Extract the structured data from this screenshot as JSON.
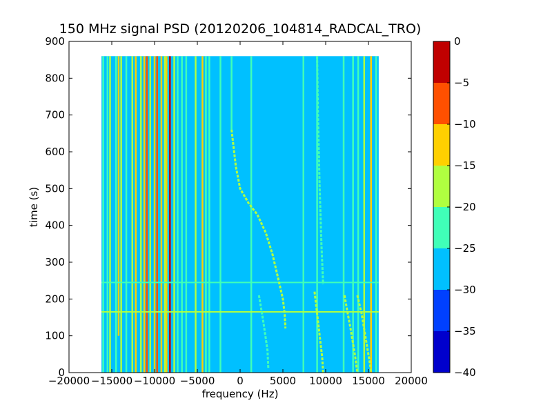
{
  "chart_data": {
    "type": "heatmap",
    "title": "150 MHz signal PSD (20120206_104814_RADCAL_TRO)",
    "xlabel": "frequency (Hz)",
    "ylabel": "time (s)",
    "xlim": [
      -20000,
      20000
    ],
    "ylim": [
      0,
      900
    ],
    "x_ticks": [
      -20000,
      -15000,
      -10000,
      -5000,
      0,
      5000,
      10000,
      15000,
      20000
    ],
    "y_ticks": [
      0,
      100,
      200,
      300,
      400,
      500,
      600,
      700,
      800,
      900
    ],
    "data_extent": {
      "x": [
        -16200,
        16200
      ],
      "y": [
        0,
        860
      ]
    },
    "background_level": -27.5,
    "colorbar": {
      "min": -40,
      "max": 0,
      "ticks": [
        0,
        -5,
        -10,
        -15,
        -20,
        -25,
        -30,
        -35,
        -40
      ],
      "bands": [
        {
          "range": [
            -40,
            -35
          ],
          "color": "#0000cc"
        },
        {
          "range": [
            -35,
            -30
          ],
          "color": "#0040ff"
        },
        {
          "range": [
            -30,
            -25
          ],
          "color": "#00c0ff"
        },
        {
          "range": [
            -25,
            -20
          ],
          "color": "#40ffb8"
        },
        {
          "range": [
            -20,
            -15
          ],
          "color": "#b0ff40"
        },
        {
          "range": [
            -15,
            -10
          ],
          "color": "#ffd000"
        },
        {
          "range": [
            -10,
            -5
          ],
          "color": "#ff5000"
        },
        {
          "range": [
            -5,
            0
          ],
          "color": "#c00000"
        }
      ]
    },
    "vertical_lines": [
      {
        "x": -16000,
        "t": [
          0,
          860
        ],
        "level": -22
      },
      {
        "x": -15500,
        "t": [
          0,
          860
        ],
        "level": -22
      },
      {
        "x": -15200,
        "t": [
          0,
          860
        ],
        "level": -17
      },
      {
        "x": -14500,
        "t": [
          0,
          860
        ],
        "level": -22
      },
      {
        "x": -14200,
        "t": [
          100,
          860
        ],
        "level": -12
      },
      {
        "x": -13900,
        "t": [
          0,
          860
        ],
        "level": -17
      },
      {
        "x": -13300,
        "t": [
          0,
          860
        ],
        "level": -22
      },
      {
        "x": -12600,
        "t": [
          0,
          860
        ],
        "level": -17
      },
      {
        "x": -12200,
        "t": [
          0,
          860
        ],
        "level": -12
      },
      {
        "x": -11600,
        "t": [
          0,
          860
        ],
        "level": -17
      },
      {
        "x": -11200,
        "t": [
          0,
          860
        ],
        "level": -12
      },
      {
        "x": -10900,
        "t": [
          0,
          860
        ],
        "level": -7
      },
      {
        "x": -10500,
        "t": [
          0,
          860
        ],
        "level": -17
      },
      {
        "x": -10000,
        "t": [
          0,
          860
        ],
        "level": -12
      },
      {
        "x": -9700,
        "t": [
          0,
          860
        ],
        "level": -7
      },
      {
        "x": -9200,
        "t": [
          0,
          860
        ],
        "level": -12
      },
      {
        "x": -8800,
        "t": [
          0,
          860
        ],
        "level": -17
      },
      {
        "x": -8600,
        "t": [
          0,
          860
        ],
        "level": -12
      },
      {
        "x": -8200,
        "t": [
          0,
          860
        ],
        "level": -2
      },
      {
        "x": -7700,
        "t": [
          0,
          860
        ],
        "level": -17
      },
      {
        "x": -7300,
        "t": [
          0,
          860
        ],
        "level": -22
      },
      {
        "x": -6800,
        "t": [
          0,
          860
        ],
        "level": -22
      },
      {
        "x": -6300,
        "t": [
          0,
          860
        ],
        "level": -22
      },
      {
        "x": -5200,
        "t": [
          0,
          860
        ],
        "level": -17
      },
      {
        "x": -4400,
        "t": [
          0,
          860
        ],
        "level": -12
      },
      {
        "x": -4000,
        "t": [
          0,
          860
        ],
        "level": -22
      },
      {
        "x": -3600,
        "t": [
          0,
          860
        ],
        "level": -22
      },
      {
        "x": -2300,
        "t": [
          0,
          860
        ],
        "level": -22
      },
      {
        "x": -1000,
        "t": [
          660,
          860
        ],
        "level": -22
      },
      {
        "x": 1300,
        "t": [
          0,
          860
        ],
        "level": -22
      },
      {
        "x": 7400,
        "t": [
          0,
          860
        ],
        "level": -22
      },
      {
        "x": 9000,
        "t": [
          0,
          860
        ],
        "level": -22
      },
      {
        "x": 12100,
        "t": [
          0,
          860
        ],
        "level": -22
      },
      {
        "x": 13200,
        "t": [
          0,
          860
        ],
        "level": -22
      },
      {
        "x": 13800,
        "t": [
          0,
          860
        ],
        "level": -22
      },
      {
        "x": 14500,
        "t": [
          0,
          860
        ],
        "level": -17
      },
      {
        "x": 15300,
        "t": [
          0,
          860
        ],
        "level": -12
      },
      {
        "x": 15900,
        "t": [
          0,
          860
        ],
        "level": -22
      }
    ],
    "tracks": [
      {
        "points": [
          [
            -1000,
            660
          ],
          [
            -500,
            560
          ],
          [
            0,
            500
          ],
          [
            1000,
            460
          ],
          [
            2000,
            430
          ],
          [
            3000,
            380
          ],
          [
            3800,
            320
          ],
          [
            4400,
            260
          ],
          [
            5000,
            200
          ],
          [
            5200,
            160
          ],
          [
            5300,
            120
          ]
        ],
        "level": -17
      },
      {
        "points": [
          [
            2200,
            210
          ],
          [
            2700,
            140
          ],
          [
            3200,
            60
          ],
          [
            3300,
            10
          ]
        ],
        "level": -22
      },
      {
        "points": [
          [
            8700,
            220
          ],
          [
            9000,
            160
          ],
          [
            9300,
            100
          ],
          [
            9600,
            40
          ],
          [
            9700,
            0
          ]
        ],
        "level": -17
      },
      {
        "points": [
          [
            12200,
            210
          ],
          [
            12500,
            170
          ],
          [
            12900,
            120
          ],
          [
            13400,
            50
          ],
          [
            13700,
            0
          ]
        ],
        "level": -17
      },
      {
        "points": [
          [
            13700,
            210
          ],
          [
            14200,
            160
          ],
          [
            14700,
            90
          ],
          [
            15200,
            20
          ],
          [
            15300,
            0
          ]
        ],
        "level": -17
      },
      {
        "points": [
          [
            9000,
            860
          ],
          [
            9100,
            700
          ],
          [
            9300,
            500
          ],
          [
            9500,
            350
          ],
          [
            9700,
            240
          ]
        ],
        "level": -22
      }
    ],
    "horizontal_lines": [
      {
        "t": 245,
        "x": [
          -16200,
          16200
        ],
        "level": -22
      },
      {
        "t": 165,
        "x": [
          -16200,
          16200
        ],
        "level": -17
      }
    ]
  }
}
